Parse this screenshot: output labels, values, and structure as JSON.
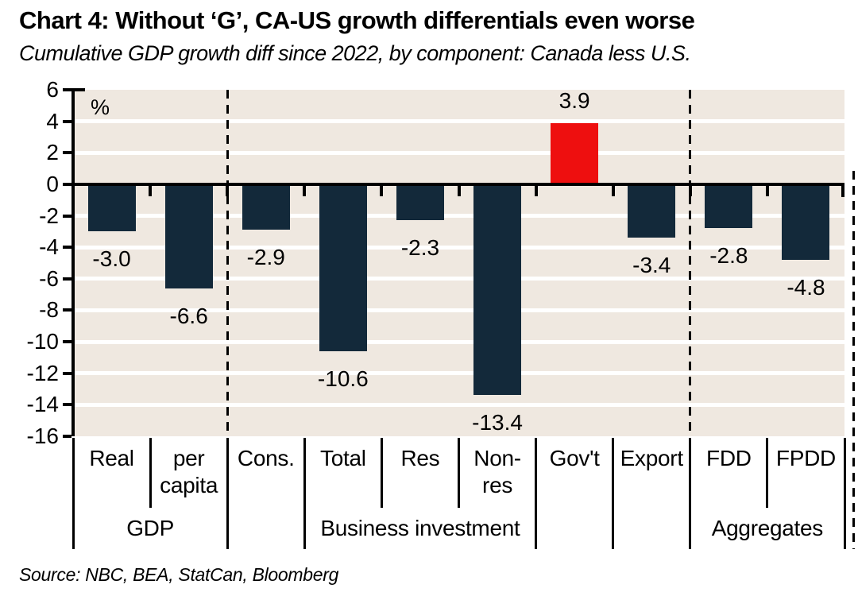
{
  "header": {
    "title": "Chart 4: Without ‘G’, CA-US growth differentials even worse",
    "subtitle": "Cumulative GDP growth diff since 2022, by component: Canada less U.S."
  },
  "footer": {
    "source": "Source: NBC, BEA, StatCan, Bloomberg"
  },
  "chart_data": {
    "type": "bar",
    "unit_label": "%",
    "categories": [
      "Real",
      "per\ncapita",
      "Cons.",
      "Total",
      "Res",
      "Non-\nres",
      "Gov't",
      "Export",
      "FDD",
      "FPDD"
    ],
    "values": [
      -3.0,
      -6.6,
      -2.9,
      -10.6,
      -2.3,
      -13.4,
      3.9,
      -3.4,
      -2.8,
      -4.8
    ],
    "value_labels": [
      "-3.0",
      "-6.6",
      "-2.9",
      "-10.6",
      "-2.3",
      "-13.4",
      "3.9",
      "-3.4",
      "-2.8",
      "-4.8"
    ],
    "highlight_index": 6,
    "colors": {
      "bar_default": "#13293A",
      "bar_highlight": "#EE0F0F",
      "plot_background": "#EFE8E0",
      "grid": "#FFFFFF",
      "axis": "#000000"
    },
    "groups": [
      {
        "label": "GDP",
        "from": 0,
        "to": 1
      },
      {
        "label": "",
        "from": 2,
        "to": 2
      },
      {
        "label": "Business investment",
        "from": 3,
        "to": 5
      },
      {
        "label": "",
        "from": 6,
        "to": 6
      },
      {
        "label": "",
        "from": 7,
        "to": 7
      },
      {
        "label": "Aggregates",
        "from": 8,
        "to": 9
      }
    ],
    "dashed_boundaries": [
      2,
      8
    ],
    "right_edge_dashed_line": true,
    "ylim": [
      -16,
      6
    ],
    "yticks": [
      6,
      4,
      2,
      0,
      -2,
      -4,
      -6,
      -8,
      -10,
      -12,
      -14,
      -16
    ],
    "grid": true,
    "legend": false,
    "xlabel": "",
    "ylabel": "%"
  }
}
